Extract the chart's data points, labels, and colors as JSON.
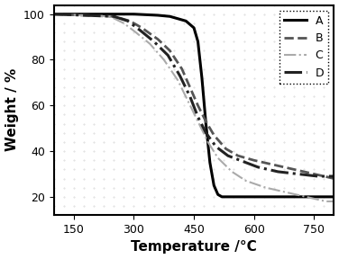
{
  "title": "",
  "xlabel": "Temperature /°C",
  "ylabel": "Weight / %",
  "xlim": [
    100,
    800
  ],
  "ylim": [
    12,
    104
  ],
  "xticks": [
    150,
    300,
    450,
    600,
    750
  ],
  "yticks": [
    20,
    40,
    60,
    80,
    100
  ],
  "background_color": "#ffffff",
  "dot_grid_color": "#cccccc",
  "series": {
    "A": {
      "color": "#000000",
      "linestyle": "solid",
      "linewidth": 2.2,
      "x": [
        100,
        300,
        360,
        390,
        410,
        430,
        450,
        460,
        470,
        480,
        490,
        500,
        510,
        520,
        540,
        580,
        650,
        800
      ],
      "y": [
        100,
        100,
        99.5,
        99,
        98,
        97,
        94,
        88,
        72,
        52,
        35,
        25,
        21,
        20,
        20,
        20,
        20,
        20
      ]
    },
    "B": {
      "color": "#555555",
      "linestyle": "dashed",
      "linewidth": 2.0,
      "x": [
        100,
        250,
        290,
        320,
        360,
        390,
        420,
        440,
        460,
        480,
        500,
        530,
        560,
        600,
        650,
        700,
        750,
        800
      ],
      "y": [
        100,
        99,
        97,
        94,
        89,
        84,
        76,
        68,
        60,
        53,
        47,
        41,
        38,
        36,
        34,
        32,
        30,
        28
      ]
    },
    "C": {
      "color": "#aaaaaa",
      "linestyle": "dashdot",
      "linewidth": 1.5,
      "x": [
        100,
        240,
        275,
        305,
        340,
        375,
        410,
        435,
        460,
        485,
        510,
        545,
        580,
        630,
        680,
        730,
        780,
        800
      ],
      "y": [
        100,
        99,
        96,
        92,
        87,
        80,
        71,
        62,
        53,
        44,
        37,
        31,
        27,
        24,
        22,
        20,
        18,
        18
      ]
    },
    "D": {
      "color": "#222222",
      "linestyle": "dashdot",
      "linewidth": 2.2,
      "x": [
        100,
        250,
        285,
        315,
        350,
        385,
        415,
        440,
        460,
        480,
        505,
        535,
        565,
        610,
        660,
        710,
        760,
        800
      ],
      "y": [
        100,
        99,
        97,
        93,
        88,
        82,
        73,
        64,
        55,
        48,
        42,
        38,
        36,
        33,
        31,
        30,
        29,
        29
      ]
    }
  },
  "legend_loc": "upper right",
  "fontsize_axis_label": 11,
  "fontsize_tick": 9,
  "fontsize_legend": 9
}
